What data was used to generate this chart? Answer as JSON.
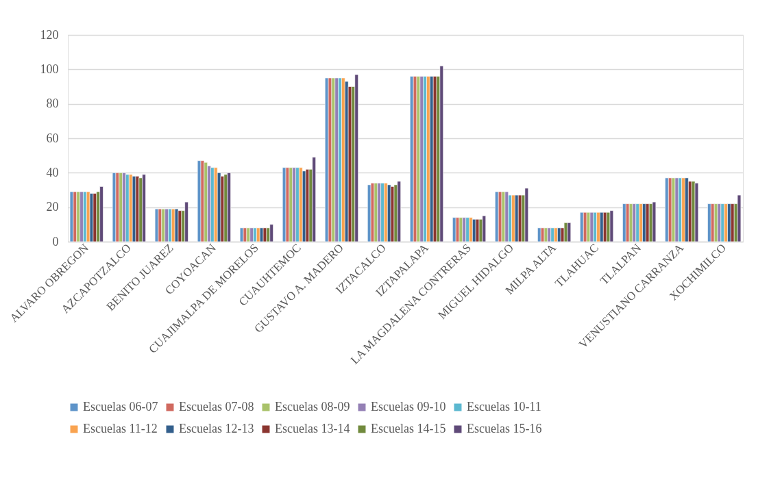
{
  "chart_data": {
    "type": "bar",
    "categories": [
      "ALVARO OBREGON",
      "AZCAPOTZALCO",
      "BENITO JUAREZ",
      "COYOACAN",
      "CUAJIMALPA DE MORELOS",
      "CUAUHTEMOC",
      "GUSTAVO A. MADERO",
      "IZTACALCO",
      "IZTAPALAPA",
      "LA MAGDALENA CONTRERAS",
      "MIGUEL HIDALGO",
      "MILPA ALTA",
      "TLAHUAC",
      "TLALPAN",
      "VENUSTIANO CARRANZA",
      "XOCHIMILCO"
    ],
    "series": [
      {
        "name": "Escuelas 06-07",
        "color": "#5e94c9",
        "values": [
          29,
          40,
          19,
          47,
          8,
          43,
          95,
          33,
          96,
          14,
          29,
          8,
          17,
          22,
          37,
          22
        ]
      },
      {
        "name": "Escuelas 07-08",
        "color": "#d0695f",
        "values": [
          29,
          40,
          19,
          47,
          8,
          43,
          95,
          34,
          96,
          14,
          29,
          8,
          17,
          22,
          37,
          22
        ]
      },
      {
        "name": "Escuelas 08-09",
        "color": "#a9c26a",
        "values": [
          29,
          40,
          19,
          46,
          8,
          43,
          95,
          34,
          96,
          14,
          29,
          8,
          17,
          22,
          37,
          22
        ]
      },
      {
        "name": "Escuelas 09-10",
        "color": "#9480b5",
        "values": [
          29,
          40,
          19,
          44,
          8,
          43,
          95,
          34,
          96,
          14,
          29,
          8,
          17,
          22,
          37,
          22
        ]
      },
      {
        "name": "Escuelas 10-11",
        "color": "#5bb8d0",
        "values": [
          29,
          39,
          19,
          43,
          8,
          43,
          95,
          34,
          96,
          14,
          27,
          8,
          17,
          22,
          37,
          22
        ]
      },
      {
        "name": "Escuelas 11-12",
        "color": "#f9a350",
        "values": [
          29,
          39,
          19,
          43,
          8,
          43,
          95,
          34,
          96,
          14,
          27,
          8,
          17,
          22,
          37,
          22
        ]
      },
      {
        "name": "Escuelas 12-13",
        "color": "#335f8c",
        "values": [
          28,
          38,
          19,
          40,
          8,
          41,
          93,
          33,
          96,
          13,
          27,
          8,
          17,
          22,
          37,
          22
        ]
      },
      {
        "name": "Escuelas 13-14",
        "color": "#8b3530",
        "values": [
          28,
          38,
          18,
          38,
          8,
          42,
          90,
          32,
          96,
          13,
          27,
          8,
          17,
          22,
          35,
          22
        ]
      },
      {
        "name": "Escuelas 14-15",
        "color": "#718a3d",
        "values": [
          29,
          37,
          18,
          39,
          8,
          42,
          90,
          33,
          96,
          13,
          27,
          11,
          17,
          22,
          35,
          22
        ]
      },
      {
        "name": "Escuelas 15-16",
        "color": "#5f4a78",
        "values": [
          32,
          39,
          23,
          40,
          10,
          49,
          97,
          35,
          102,
          15,
          31,
          11,
          18,
          23,
          34,
          27
        ]
      }
    ],
    "ylim": [
      0,
      120
    ],
    "yticks": [
      0,
      20,
      40,
      60,
      80,
      100,
      120
    ],
    "grid": "y",
    "legend": "bottom"
  }
}
